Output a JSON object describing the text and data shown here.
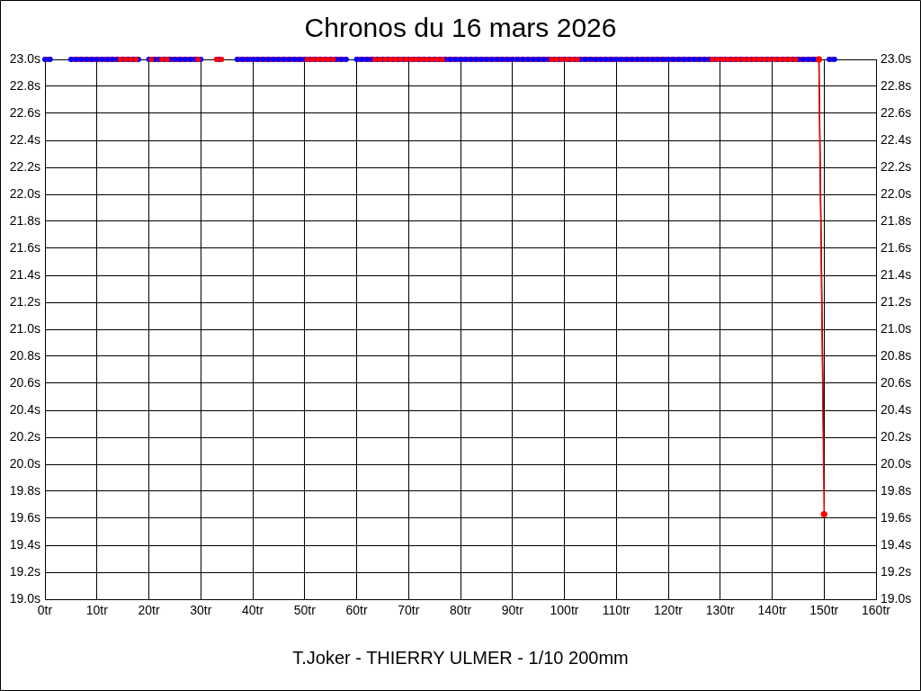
{
  "chart_data": {
    "type": "scatter",
    "title": "Chronos du 16 mars 2026",
    "xlabel": "T.Joker - THIERRY ULMER - 1/10 200mm",
    "xlim": [
      0,
      160
    ],
    "xticks": [
      {
        "value": 0,
        "label": "0tr"
      },
      {
        "value": 10,
        "label": "10tr"
      },
      {
        "value": 20,
        "label": "20tr"
      },
      {
        "value": 30,
        "label": "30tr"
      },
      {
        "value": 40,
        "label": "40tr"
      },
      {
        "value": 50,
        "label": "50tr"
      },
      {
        "value": 60,
        "label": "60tr"
      },
      {
        "value": 70,
        "label": "70tr"
      },
      {
        "value": 80,
        "label": "80tr"
      },
      {
        "value": 90,
        "label": "90tr"
      },
      {
        "value": 100,
        "label": "100tr"
      },
      {
        "value": 110,
        "label": "110tr"
      },
      {
        "value": 120,
        "label": "120tr"
      },
      {
        "value": 130,
        "label": "130tr"
      },
      {
        "value": 140,
        "label": "140tr"
      },
      {
        "value": 150,
        "label": "150tr"
      },
      {
        "value": 160,
        "label": "160tr"
      }
    ],
    "ylim": [
      19,
      23
    ],
    "yticks": [
      {
        "value": 19,
        "label": "19.0s"
      },
      {
        "value": 19.2,
        "label": "19.2s"
      },
      {
        "value": 19.4,
        "label": "19.4s"
      },
      {
        "value": 19.6,
        "label": "19.6s"
      },
      {
        "value": 19.8,
        "label": "19.8s"
      },
      {
        "value": 20,
        "label": "20.0s"
      },
      {
        "value": 20.2,
        "label": "20.2s"
      },
      {
        "value": 20.4,
        "label": "20.4s"
      },
      {
        "value": 20.6,
        "label": "20.6s"
      },
      {
        "value": 20.8,
        "label": "20.8s"
      },
      {
        "value": 21,
        "label": "21.0s"
      },
      {
        "value": 21.2,
        "label": "21.2s"
      },
      {
        "value": 21.4,
        "label": "21.4s"
      },
      {
        "value": 21.6,
        "label": "21.6s"
      },
      {
        "value": 21.8,
        "label": "21.8s"
      },
      {
        "value": 22,
        "label": "22.0s"
      },
      {
        "value": 22.2,
        "label": "22.2s"
      },
      {
        "value": 22.4,
        "label": "22.4s"
      },
      {
        "value": 22.6,
        "label": "22.6s"
      },
      {
        "value": 22.8,
        "label": "22.8s"
      },
      {
        "value": 23,
        "label": "23.0s"
      }
    ],
    "y2lim": [
      19,
      23
    ],
    "y2ticks": [
      {
        "value": 19,
        "label": "19.0s"
      },
      {
        "value": 19.2,
        "label": "19.2s"
      },
      {
        "value": 19.4,
        "label": "19.4s"
      },
      {
        "value": 19.6,
        "label": "19.6s"
      },
      {
        "value": 19.8,
        "label": "19.8s"
      },
      {
        "value": 20,
        "label": "20.0s"
      },
      {
        "value": 20.2,
        "label": "20.2s"
      },
      {
        "value": 20.4,
        "label": "20.4s"
      },
      {
        "value": 20.6,
        "label": "20.6s"
      },
      {
        "value": 20.8,
        "label": "20.8s"
      },
      {
        "value": 21,
        "label": "21.0s"
      },
      {
        "value": 21.2,
        "label": "21.2s"
      },
      {
        "value": 21.4,
        "label": "21.4s"
      },
      {
        "value": 21.6,
        "label": "21.6s"
      },
      {
        "value": 21.8,
        "label": "21.8s"
      },
      {
        "value": 22,
        "label": "22.0s"
      },
      {
        "value": 22.2,
        "label": "22.2s"
      },
      {
        "value": 22.4,
        "label": "22.4s"
      },
      {
        "value": 22.6,
        "label": "22.6s"
      },
      {
        "value": 22.8,
        "label": "22.8s"
      },
      {
        "value": 23,
        "label": "23.0s"
      }
    ],
    "grid": true,
    "marker": "circle",
    "series": [
      {
        "type": "line",
        "color": "#000000",
        "marker": "none",
        "x": [
          149,
          150
        ],
        "values": [
          23,
          19.9
        ]
      },
      {
        "color": "#ff0000",
        "x": [
          0.5,
          5.5,
          6.5,
          7.5,
          8.5,
          9.5,
          10.5,
          11.5,
          12.5,
          13.5,
          21.5,
          24.5,
          25.5,
          26.5,
          27.5,
          28.5,
          37.5,
          38.5,
          39.5,
          40.5,
          41.5,
          42.5,
          43.5,
          44.5,
          45.5,
          46.5,
          47.5,
          48.5,
          49.5,
          56.5,
          57.5,
          60.5,
          61.5,
          62.5,
          77.5,
          78.5,
          79.5,
          80.5,
          81.5,
          82.5,
          83.5,
          84.5,
          85.5,
          86.5,
          87.5,
          88.5,
          89.5,
          90.5,
          91.5,
          92.5,
          93.5,
          94.5,
          95.5,
          96.5,
          103.5,
          104.5,
          105.5,
          106.5,
          107.5,
          108.5,
          109.5,
          110.5,
          111.5,
          112.5,
          113.5,
          114.5,
          115.5,
          116.5,
          117.5,
          118.5,
          119.5,
          120.5,
          121.5,
          122.5,
          123.5,
          124.5,
          125.5,
          126.5,
          127.5,
          145.5,
          146.5,
          147.5,
          148.5,
          151.5
        ],
        "values": [
          23,
          23,
          23,
          23,
          23,
          23,
          23,
          23,
          23,
          23,
          23,
          23,
          23,
          23,
          23,
          23,
          23,
          23,
          23,
          23,
          23,
          23,
          23,
          23,
          23,
          23,
          23,
          23,
          23,
          23,
          23,
          23,
          23,
          23,
          23,
          23,
          23,
          23,
          23,
          23,
          23,
          23,
          23,
          23,
          23,
          23,
          23,
          23,
          23,
          23,
          23,
          23,
          23,
          23,
          23,
          23,
          23,
          23,
          23,
          23,
          23,
          23,
          23,
          23,
          23,
          23,
          23,
          23,
          23,
          23,
          23,
          23,
          23,
          23,
          23,
          23,
          23,
          23,
          23,
          23,
          23,
          23,
          23,
          23
        ]
      },
      {
        "color": "#0000ff",
        "x": [
          0,
          1,
          5,
          6,
          7,
          8,
          9,
          10,
          11,
          12,
          13,
          14,
          15,
          16,
          17,
          18,
          20,
          21,
          22,
          23,
          24,
          25,
          26,
          27,
          28,
          29,
          30,
          33.5,
          37,
          38,
          39,
          40,
          41,
          42,
          43,
          44,
          45,
          46,
          47,
          48,
          49,
          50,
          51,
          52,
          53,
          54,
          55,
          56,
          57,
          58,
          60,
          61,
          62,
          63,
          64,
          65,
          66,
          67,
          68,
          69,
          70,
          71,
          72,
          73,
          74,
          75,
          76,
          77,
          78,
          79,
          80,
          81,
          82,
          83,
          84,
          85,
          86,
          87,
          88,
          89,
          90,
          91,
          92,
          93,
          94,
          95,
          96,
          97,
          98,
          99,
          100,
          101,
          102,
          103,
          104,
          105,
          106,
          107,
          108,
          109,
          110,
          111,
          112,
          113,
          114,
          115,
          116,
          117,
          118,
          119,
          120,
          121,
          122,
          123,
          124,
          125,
          126,
          127,
          128,
          129,
          130,
          131,
          132,
          133,
          134,
          135,
          136,
          137,
          138,
          139,
          140,
          141,
          142,
          143,
          144,
          145,
          146,
          147,
          148,
          151,
          152
        ],
        "values": [
          23,
          23,
          23,
          23,
          23,
          23,
          23,
          23,
          23,
          23,
          23,
          23,
          23,
          23,
          23,
          23,
          23,
          23,
          23,
          23,
          23,
          23,
          23,
          23,
          23,
          23,
          23,
          23,
          23,
          23,
          23,
          23,
          23,
          23,
          23,
          23,
          23,
          23,
          23,
          23,
          23,
          23,
          23,
          23,
          23,
          23,
          23,
          23,
          23,
          23,
          23,
          23,
          23,
          23,
          23,
          23,
          23,
          23,
          23,
          23,
          23,
          23,
          23,
          23,
          23,
          23,
          23,
          23,
          23,
          23,
          23,
          23,
          23,
          23,
          23,
          23,
          23,
          23,
          23,
          23,
          23,
          23,
          23,
          23,
          23,
          23,
          23,
          23,
          23,
          23,
          23,
          23,
          23,
          23,
          23,
          23,
          23,
          23,
          23,
          23,
          23,
          23,
          23,
          23,
          23,
          23,
          23,
          23,
          23,
          23,
          23,
          23,
          23,
          23,
          23,
          23,
          23,
          23,
          23,
          23,
          23,
          23,
          23,
          23,
          23,
          23,
          23,
          23,
          23,
          23,
          23,
          23,
          23,
          23,
          23,
          23,
          23,
          23,
          23,
          23,
          23
        ]
      },
      {
        "color": "#ff0000",
        "x": [
          14.5,
          15.5,
          16.5,
          17.5,
          20.5,
          22.5,
          23.5,
          29.5,
          33,
          34,
          50.5,
          51.5,
          52.5,
          53.5,
          54.5,
          55.5,
          63.5,
          64.5,
          65.5,
          66.5,
          67.5,
          68.5,
          69.5,
          70.5,
          71.5,
          72.5,
          73.5,
          74.5,
          75.5,
          76.5,
          97.5,
          98.5,
          99.5,
          100.5,
          101.5,
          102.5,
          128.5,
          129.5,
          130.5,
          131.5,
          132.5,
          133.5,
          134.5,
          135.5,
          136.5,
          137.5,
          138.5,
          139.5,
          140.5,
          141.5,
          142.5,
          143.5,
          144.5
        ],
        "values": [
          23,
          23,
          23,
          23,
          23,
          23,
          23,
          23,
          23,
          23,
          23,
          23,
          23,
          23,
          23,
          23,
          23,
          23,
          23,
          23,
          23,
          23,
          23,
          23,
          23,
          23,
          23,
          23,
          23,
          23,
          23,
          23,
          23,
          23,
          23,
          23,
          23,
          23,
          23,
          23,
          23,
          23,
          23,
          23,
          23,
          23,
          23,
          23,
          23,
          23,
          23,
          23,
          23
        ]
      },
      {
        "type": "line",
        "color": "#ff0000",
        "x": [
          149,
          150
        ],
        "values": [
          23,
          19.63
        ]
      }
    ]
  }
}
